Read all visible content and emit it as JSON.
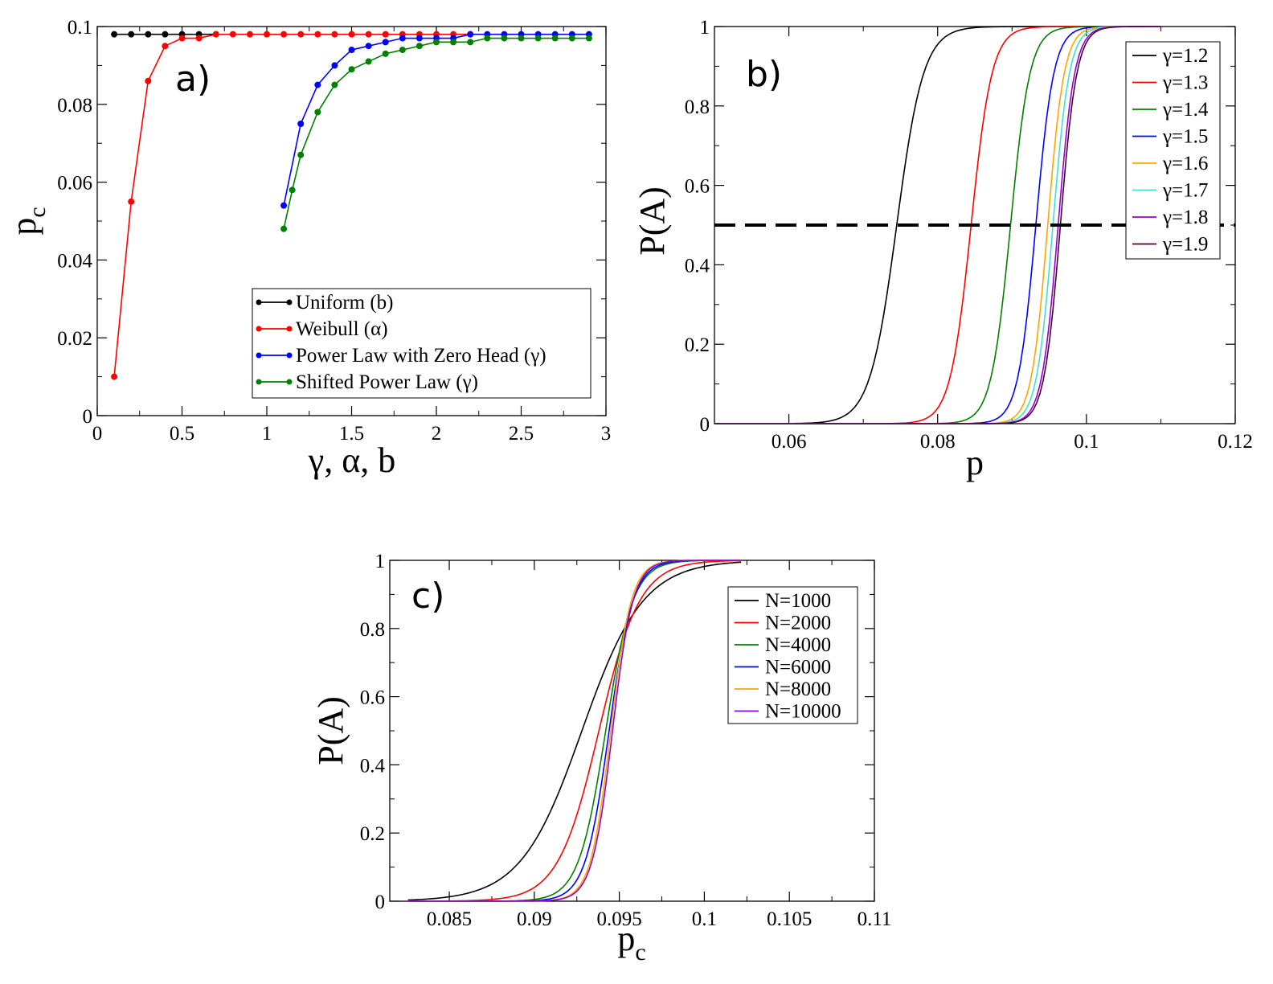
{
  "chart_data": [
    {
      "id": "a",
      "type": "line",
      "panel_label": "a)",
      "xlabel": "γ, α, b",
      "ylabel": "p",
      "ylabel_sub": "c",
      "xlim": [
        0,
        3
      ],
      "ylim": [
        0,
        0.1
      ],
      "xticks": [
        "0",
        "0.5",
        "1",
        "1.5",
        "2",
        "2.5",
        "3"
      ],
      "yticks": [
        "0",
        "0.02",
        "0.04",
        "0.06",
        "0.08",
        "0.1"
      ],
      "legend_position": "bottom-right",
      "series": [
        {
          "name": "Uniform (b)",
          "color": "#000000",
          "x": [
            0.1,
            0.2,
            0.3,
            0.4,
            0.5,
            0.6,
            0.7
          ],
          "y": [
            0.098,
            0.098,
            0.098,
            0.098,
            0.098,
            0.098,
            0.098
          ]
        },
        {
          "name": "Weibull (α)",
          "color": "#ff0000",
          "x": [
            0.1,
            0.2,
            0.3,
            0.4,
            0.5,
            0.6,
            0.7,
            0.8,
            0.9,
            1.0,
            1.1,
            1.2,
            1.3,
            1.4,
            1.5,
            1.6,
            1.7,
            1.8,
            1.9,
            2.0,
            2.1,
            2.2
          ],
          "y": [
            0.01,
            0.055,
            0.086,
            0.095,
            0.097,
            0.097,
            0.098,
            0.098,
            0.098,
            0.098,
            0.098,
            0.098,
            0.098,
            0.098,
            0.098,
            0.098,
            0.098,
            0.098,
            0.098,
            0.098,
            0.098,
            0.098
          ]
        },
        {
          "name": "Power Law with Zero Head (γ)",
          "color": "#0000ff",
          "x": [
            1.1,
            1.2,
            1.3,
            1.4,
            1.5,
            1.6,
            1.7,
            1.8,
            1.9,
            2.0,
            2.1,
            2.2,
            2.3,
            2.4,
            2.5,
            2.6,
            2.7,
            2.8,
            2.9
          ],
          "y": [
            0.054,
            0.075,
            0.085,
            0.09,
            0.094,
            0.095,
            0.096,
            0.097,
            0.097,
            0.097,
            0.097,
            0.098,
            0.098,
            0.098,
            0.098,
            0.098,
            0.098,
            0.098,
            0.098
          ]
        },
        {
          "name": "Shifted Power Law (γ)",
          "color": "#008000",
          "x": [
            1.1,
            1.15,
            1.2,
            1.3,
            1.4,
            1.5,
            1.6,
            1.7,
            1.8,
            1.9,
            2.0,
            2.1,
            2.2,
            2.3,
            2.4,
            2.5,
            2.6,
            2.7,
            2.8,
            2.9
          ],
          "y": [
            0.048,
            0.058,
            0.067,
            0.078,
            0.085,
            0.089,
            0.091,
            0.093,
            0.094,
            0.095,
            0.096,
            0.096,
            0.096,
            0.097,
            0.097,
            0.097,
            0.097,
            0.097,
            0.097,
            0.097
          ]
        }
      ]
    },
    {
      "id": "b",
      "type": "line",
      "panel_label": "b)",
      "xlabel": "p",
      "ylabel": "P(A)",
      "xlim": [
        0.05,
        0.12
      ],
      "ylim": [
        0,
        1
      ],
      "xticks": [
        "0.06",
        "0.08",
        "0.1",
        "0.12"
      ],
      "yticks": [
        "0",
        "0.2",
        "0.4",
        "0.6",
        "0.8",
        "1"
      ],
      "reference_line": {
        "y": 0.5,
        "style": "dashed",
        "color": "#000000"
      },
      "legend_position": "top-right",
      "series": [
        {
          "name": "γ=1.2",
          "color": "#000000",
          "center": 0.0745,
          "width": 0.0018
        },
        {
          "name": "γ=1.3",
          "color": "#ff0000",
          "center": 0.0845,
          "width": 0.0014
        },
        {
          "name": "γ=1.4",
          "color": "#008000",
          "center": 0.0898,
          "width": 0.0013
        },
        {
          "name": "γ=1.5",
          "color": "#0000ff",
          "center": 0.0932,
          "width": 0.0012
        },
        {
          "name": "γ=1.6",
          "color": "#ffa500",
          "center": 0.0948,
          "width": 0.0011
        },
        {
          "name": "γ=1.7",
          "color": "#40e0d0",
          "center": 0.0955,
          "width": 0.0011
        },
        {
          "name": "γ=1.8",
          "color": "#9400d3",
          "center": 0.0962,
          "width": 0.0011
        },
        {
          "name": "γ=1.9",
          "color": "#4b0035",
          "center": 0.0965,
          "width": 0.0011
        }
      ]
    },
    {
      "id": "c",
      "type": "line",
      "panel_label": "c)",
      "xlabel": "p",
      "xlabel_sub": "c",
      "ylabel": "P(A)",
      "xlim": [
        0.0815,
        0.11
      ],
      "ylim": [
        0,
        1
      ],
      "xticks": [
        "0.085",
        "0.09",
        "0.095",
        "0.1",
        "0.105",
        "0.11"
      ],
      "yticks": [
        "0",
        "0.2",
        "0.4",
        "0.6",
        "0.8",
        "1"
      ],
      "legend_position": "top-right",
      "series": [
        {
          "name": "N=1000",
          "color": "#000000",
          "center": 0.0928,
          "width": 0.0018
        },
        {
          "name": "N=2000",
          "color": "#ff0000",
          "center": 0.0938,
          "width": 0.0012
        },
        {
          "name": "N=4000",
          "color": "#008000",
          "center": 0.0942,
          "width": 0.0008
        },
        {
          "name": "N=6000",
          "color": "#0000ff",
          "center": 0.0944,
          "width": 0.0007
        },
        {
          "name": "N=8000",
          "color": "#ffa500",
          "center": 0.0945,
          "width": 0.0006
        },
        {
          "name": "N=10000",
          "color": "#9400d3",
          "center": 0.0946,
          "width": 0.0006
        }
      ]
    }
  ]
}
